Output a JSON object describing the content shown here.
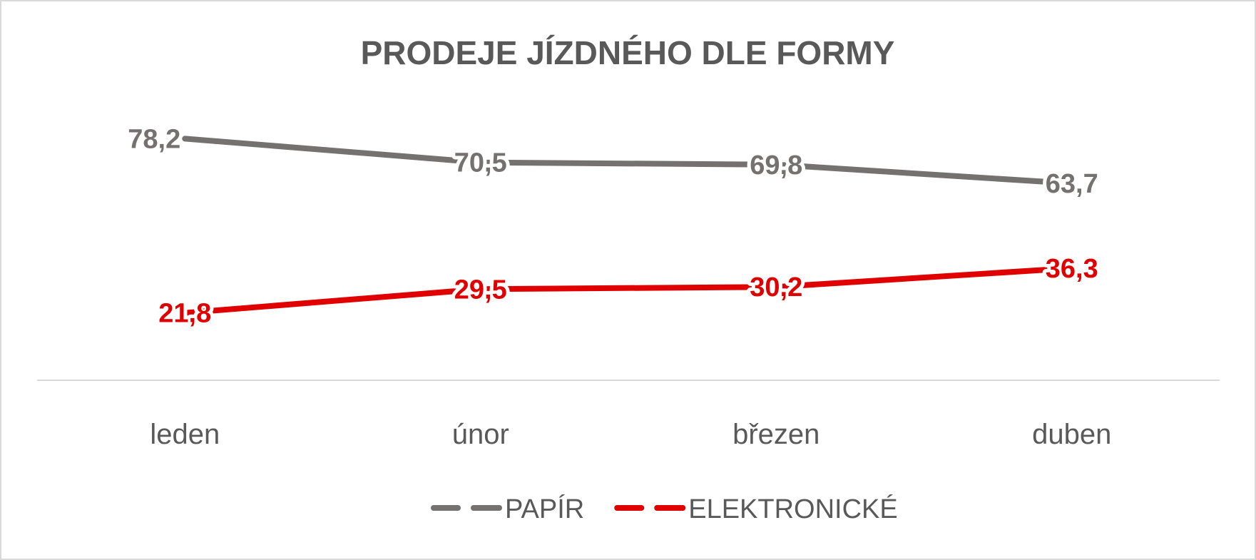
{
  "chart_data": {
    "type": "line",
    "title": "PRODEJE JÍZDNÉHO DLE FORMY",
    "xlabel": "",
    "ylabel": "",
    "categories": [
      "leden",
      "únor",
      "březen",
      "duben"
    ],
    "ylim": [
      0,
      100
    ],
    "grid": false,
    "legend_position": "bottom",
    "series": [
      {
        "name": "PAPÍR",
        "color": "#767171",
        "values": [
          78.2,
          70.5,
          69.8,
          63.7
        ],
        "labels": [
          "78,2",
          "70,5",
          "69,8",
          "63,7"
        ],
        "label_position": [
          "left",
          "center",
          "center",
          "center"
        ]
      },
      {
        "name": "ELEKTRONICKÉ",
        "color": "#e00000",
        "values": [
          21.8,
          29.5,
          30.2,
          36.3
        ],
        "labels": [
          "21,8",
          "29,5",
          "30,2",
          "36,3"
        ],
        "label_position": [
          "center",
          "center",
          "center",
          "center"
        ]
      }
    ]
  }
}
